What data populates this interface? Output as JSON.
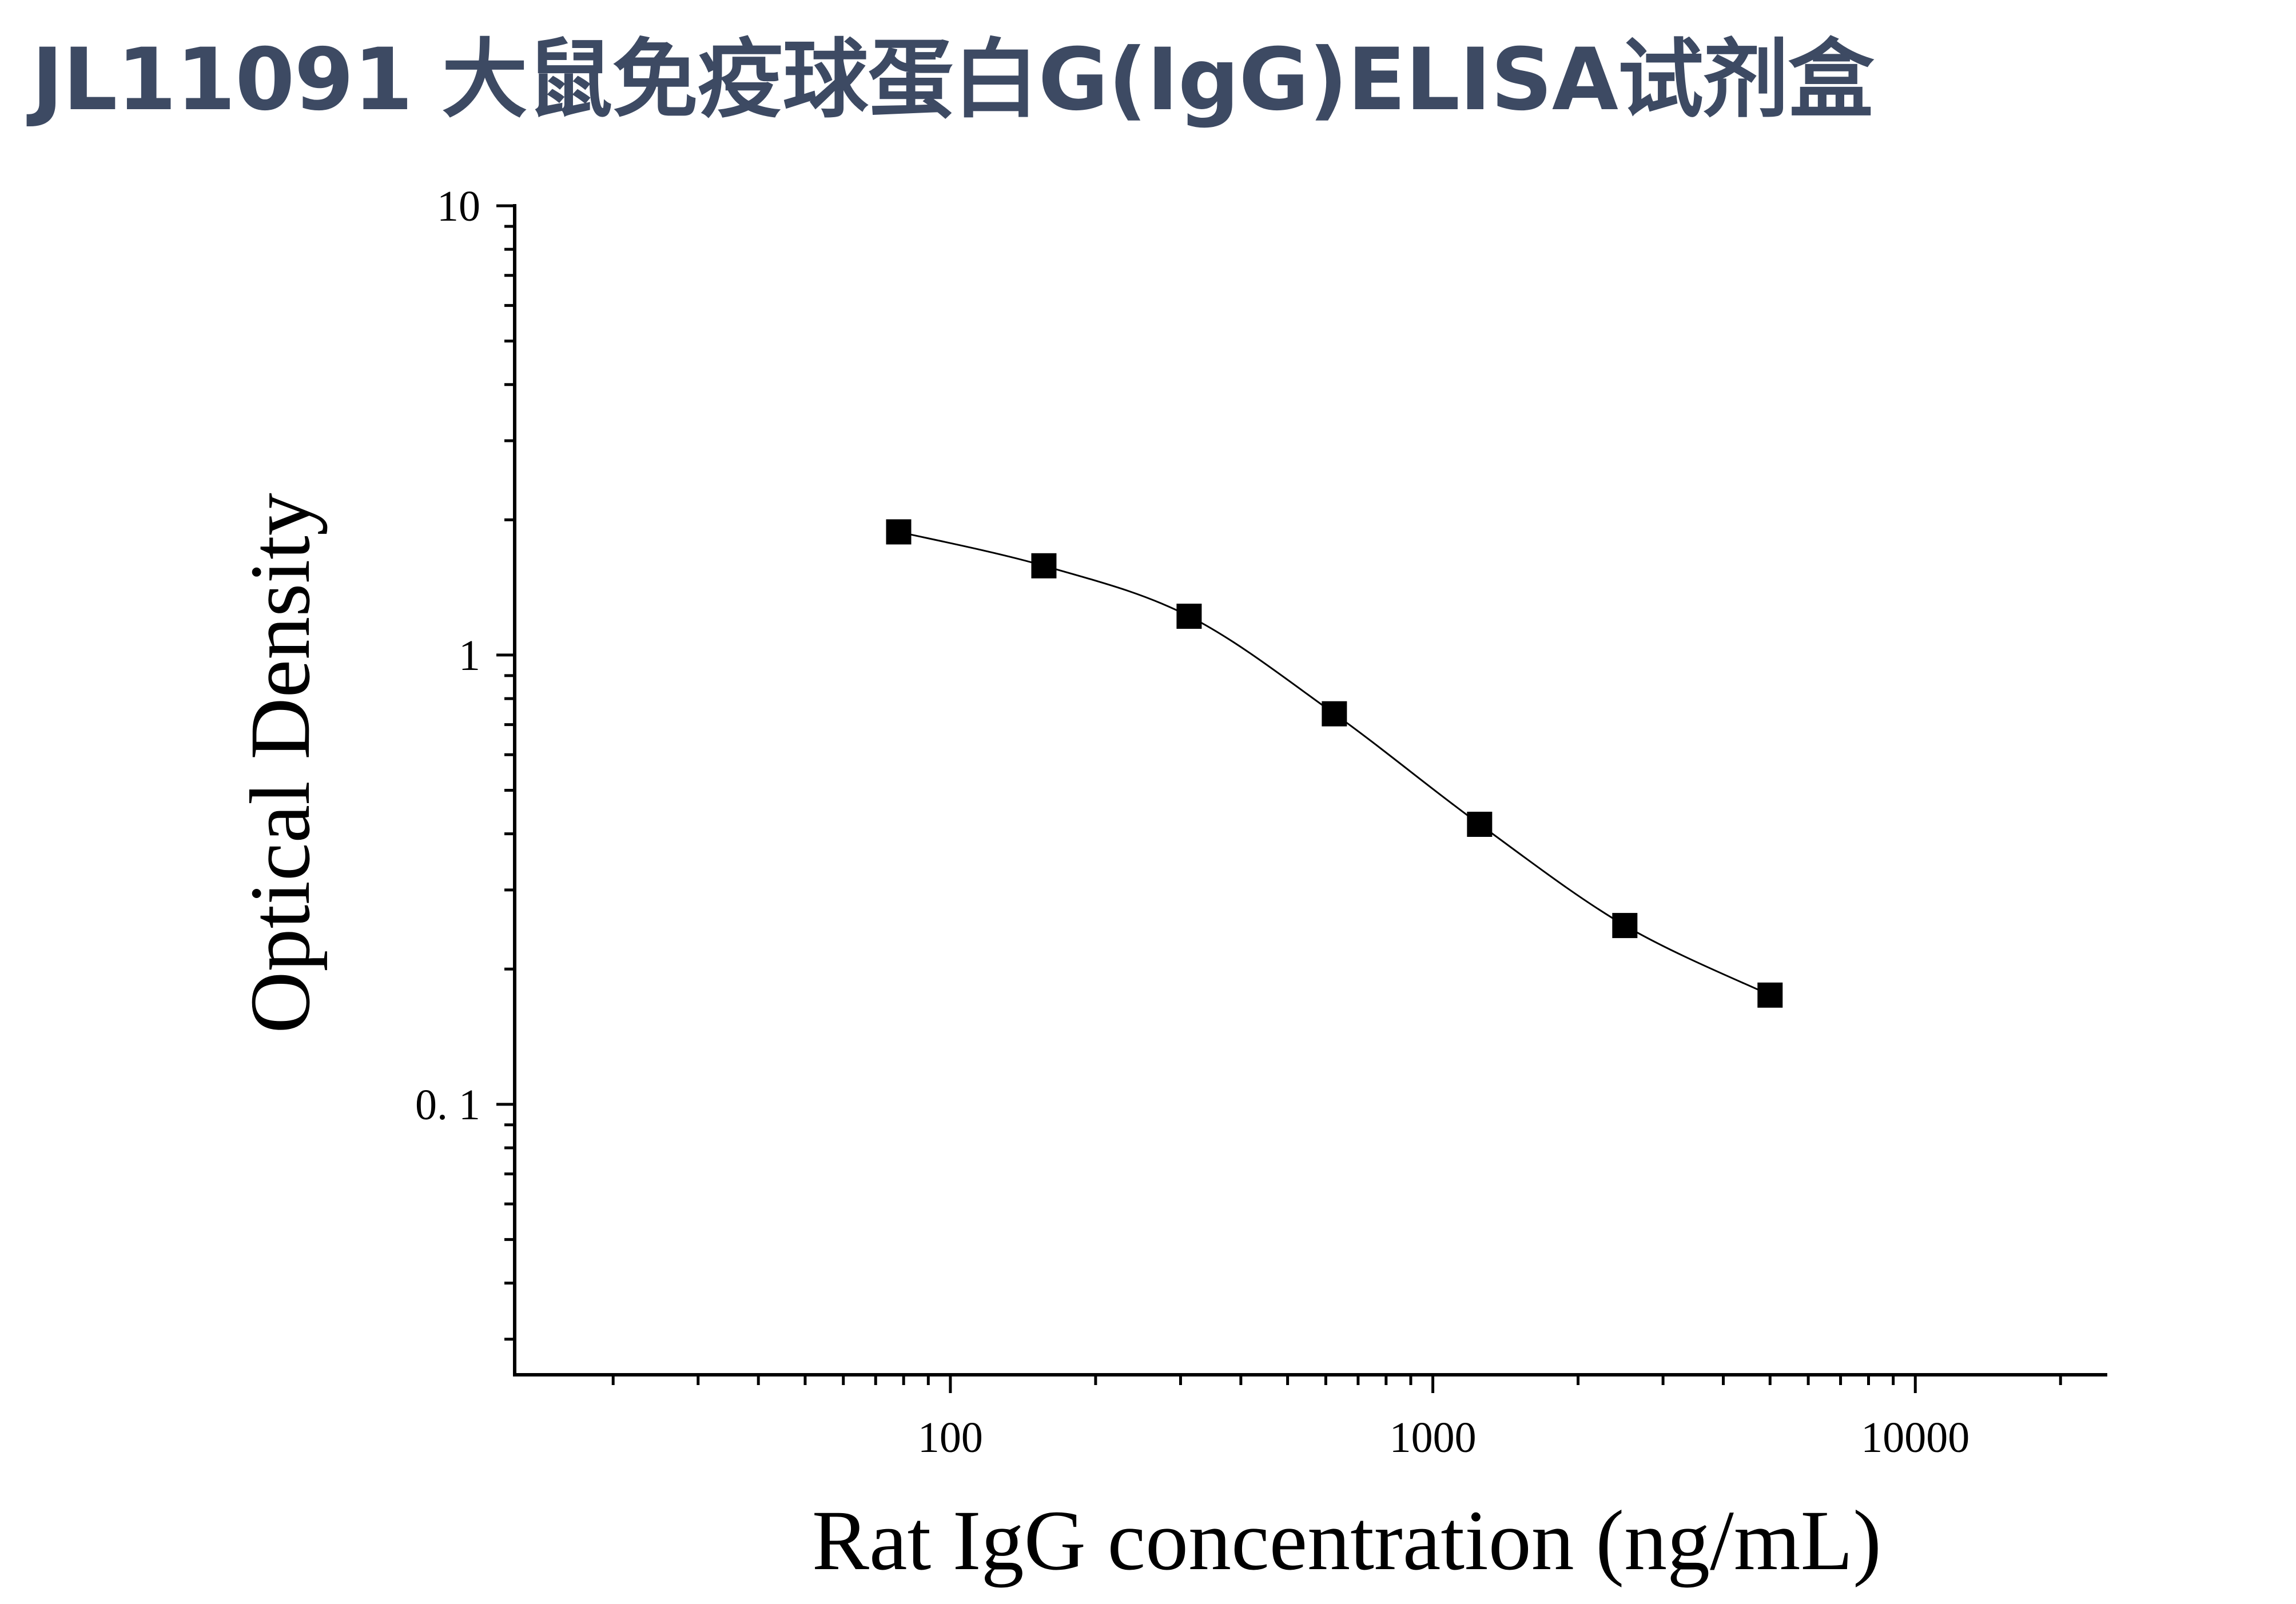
{
  "title": "JL11091 大鼠免疫球蛋白G(IgG)ELISA试剂盒",
  "chart_data": {
    "type": "scatter",
    "x_scale": "log",
    "y_scale": "log",
    "xlabel": "Rat IgG concentration (ng/mL)",
    "ylabel": "Optical Density",
    "xlim": [
      12.5,
      25000
    ],
    "ylim": [
      0.025,
      10
    ],
    "x_ticks": [
      {
        "value": 100,
        "label": "100"
      },
      {
        "value": 1000,
        "label": "1000"
      },
      {
        "value": 10000,
        "label": "10000"
      }
    ],
    "y_ticks": [
      {
        "value": 10,
        "label": "10"
      },
      {
        "value": 1,
        "label": "1"
      },
      {
        "value": 0.1,
        "label": "0. 1"
      }
    ],
    "series": [
      {
        "marker": "square",
        "color": "#000000",
        "fit_line": true,
        "x": [
          78.13,
          156.25,
          312.5,
          625,
          1250,
          2500,
          5000
        ],
        "y": [
          1.88,
          1.58,
          1.22,
          0.74,
          0.42,
          0.25,
          0.175
        ]
      }
    ],
    "grid": false,
    "legend": null
  }
}
